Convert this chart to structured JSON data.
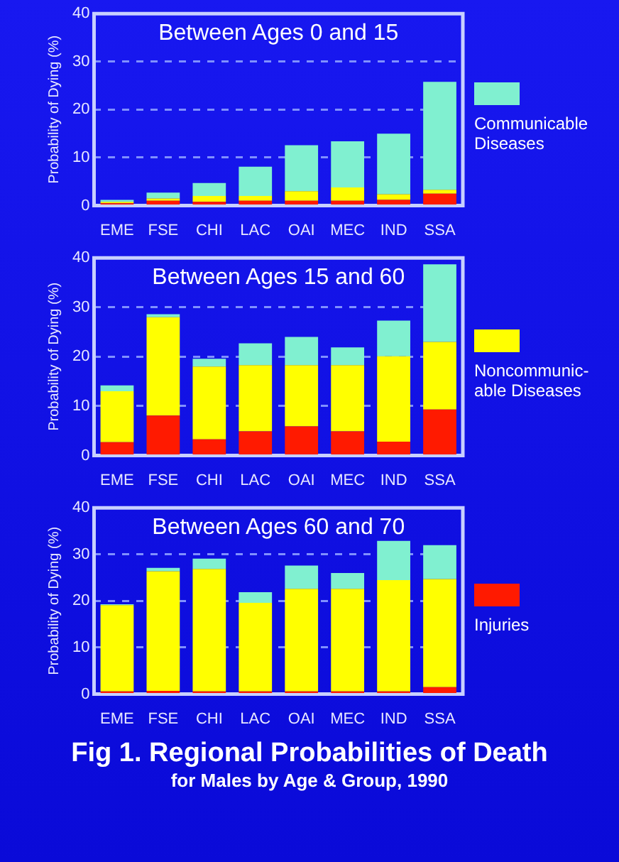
{
  "chart_data": [
    {
      "type": "bar",
      "stacked": true,
      "title": "Between Ages 0 and 15",
      "ylabel": "Probability of Dying (%)",
      "categories": [
        "EME",
        "FSE",
        "CHI",
        "LAC",
        "OAI",
        "MEC",
        "IND",
        "SSA"
      ],
      "ylim": [
        0,
        40
      ],
      "yticks": [
        0,
        10,
        20,
        30,
        40
      ],
      "grid": "y",
      "legend": "right",
      "series": [
        {
          "color": "#ff1a00",
          "values": [
            0.5,
            1.0,
            0.8,
            1.0,
            1.0,
            1.0,
            1.2,
            2.5
          ]
        },
        {
          "color": "#ffff00",
          "values": [
            0.3,
            0.5,
            1.2,
            1.0,
            2.0,
            2.8,
            1.2,
            0.8
          ]
        },
        {
          "name": "Communicable Diseases",
          "color": "#80f0d0",
          "values": [
            0.4,
            1.2,
            2.7,
            6.1,
            9.6,
            9.6,
            12.6,
            22.5
          ]
        }
      ]
    },
    {
      "type": "bar",
      "stacked": true,
      "title": "Between Ages 15 and 60",
      "ylabel": "Probability of Dying (%)",
      "categories": [
        "EME",
        "FSE",
        "CHI",
        "LAC",
        "OAI",
        "MEC",
        "IND",
        "SSA"
      ],
      "ylim": [
        0,
        40
      ],
      "yticks": [
        0,
        10,
        20,
        30,
        40
      ],
      "grid": "y",
      "legend": "right",
      "series": [
        {
          "color": "#ff1a00",
          "values": [
            2.7,
            8.1,
            3.3,
            4.9,
            5.9,
            4.9,
            2.8,
            9.3
          ]
        },
        {
          "name": "Noncommunic-able Diseases",
          "color": "#ffff00",
          "values": [
            10.3,
            19.9,
            14.7,
            13.4,
            12.4,
            13.4,
            17.3,
            13.7
          ]
        },
        {
          "color": "#80f0d0",
          "values": [
            1.2,
            0.6,
            1.6,
            4.4,
            5.7,
            3.6,
            7.2,
            15.7
          ]
        }
      ]
    },
    {
      "type": "bar",
      "stacked": true,
      "title": "Between Ages 60 and 70",
      "ylabel": "Probability of Dying (%)",
      "categories": [
        "EME",
        "FSE",
        "CHI",
        "LAC",
        "OAI",
        "MEC",
        "IND",
        "SSA"
      ],
      "ylim": [
        0,
        40
      ],
      "yticks": [
        0,
        10,
        20,
        30,
        40
      ],
      "grid": "y",
      "legend": "right",
      "series": [
        {
          "name": "Injuries",
          "color": "#ff1a00",
          "values": [
            0.6,
            0.7,
            0.6,
            0.6,
            0.6,
            0.6,
            0.6,
            1.5
          ]
        },
        {
          "color": "#ffff00",
          "values": [
            18.5,
            25.7,
            26.3,
            19.0,
            22.0,
            22.0,
            23.9,
            23.2
          ]
        },
        {
          "color": "#80f0d0",
          "values": [
            0.2,
            0.7,
            2.2,
            2.3,
            5.0,
            3.4,
            8.4,
            7.3
          ]
        }
      ]
    },
    {
      "type": "other",
      "title": "Fig 1.  Regional Probabilities of Death",
      "subtitle": "for Males by Age & Group, 1990"
    }
  ]
}
